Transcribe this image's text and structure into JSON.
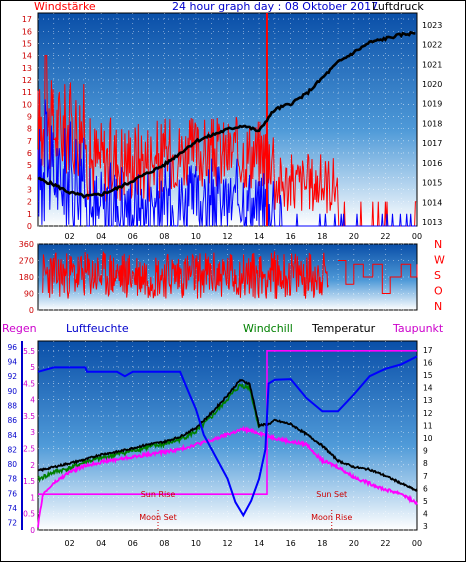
{
  "header": {
    "left": "Windstärke",
    "center": "24 hour graph day : 08 Oktober 2017",
    "right": "Luftdruck"
  },
  "hours": [
    "02",
    "04",
    "06",
    "08",
    "10",
    "12",
    "14",
    "16",
    "18",
    "20",
    "22",
    "00"
  ],
  "colors": {
    "wind_speed": "#ff0000",
    "wind_gust": "#0000ff",
    "pressure": "#000000",
    "direction": "#ff0000",
    "humidity": "#0000ff",
    "temperature": "#000000",
    "windchill": "#008000",
    "dewpoint": "#ff00ff",
    "rain": "#ff00ff",
    "sun_moon": "#cc0000"
  },
  "chart_data": [
    {
      "type": "line",
      "id": "wind_pressure",
      "left_axis_ticks": [
        "0",
        "1",
        "2",
        "3",
        "4",
        "5",
        "6",
        "7",
        "8",
        "9",
        "10",
        "11",
        "12",
        "13",
        "14",
        "15",
        "16",
        "17"
      ],
      "right_axis_ticks": [
        "1013",
        "1014",
        "1015",
        "1016",
        "1017",
        "1018",
        "1019",
        "1020",
        "1021",
        "1022",
        "1023"
      ],
      "ylim_left": [
        0,
        17.5
      ],
      "ylim_right": [
        1012.8,
        1023.6
      ],
      "xlim_hours": [
        0,
        24
      ],
      "pressure_hours": [
        0,
        1,
        2,
        3,
        4,
        5,
        6,
        7,
        8,
        9,
        10,
        11,
        12,
        13,
        14,
        14.5,
        15,
        16,
        17,
        18,
        19,
        20,
        21,
        22,
        23,
        24
      ],
      "pressure_values": [
        1015.2,
        1014.9,
        1014.5,
        1014.3,
        1014.4,
        1014.7,
        1015.1,
        1015.5,
        1015.9,
        1016.5,
        1017.1,
        1017.4,
        1017.7,
        1017.9,
        1017.6,
        1018.2,
        1018.7,
        1019.0,
        1019.5,
        1020.3,
        1021.1,
        1021.6,
        1022.1,
        1022.3,
        1022.5,
        1022.6
      ],
      "series": [
        {
          "name": "Windstärke",
          "color": "#ff0000"
        },
        {
          "name": "Luftdruck",
          "color": "#000000"
        }
      ]
    },
    {
      "type": "line",
      "id": "wind_direction",
      "left_axis_ticks": [
        "0",
        "90",
        "180",
        "270",
        "360"
      ],
      "right_axis_labels": [
        "N",
        "W",
        "S",
        "O",
        "N"
      ],
      "ylim": [
        0,
        360
      ],
      "xlim_hours": [
        0,
        24
      ]
    },
    {
      "type": "line",
      "id": "temp_humidity",
      "header_labels": {
        "rain": "Regen",
        "humidity": "Luftfeuchte",
        "windchill": "Windchill",
        "temperature": "Temperatur",
        "dewpoint": "Taupunkt"
      },
      "humidity_ticks": [
        "72",
        "74",
        "76",
        "78",
        "80",
        "82",
        "84",
        "86",
        "88",
        "90",
        "92",
        "94",
        "96"
      ],
      "rain_ticks": [
        "0",
        "0.5",
        "1",
        "1.5",
        "2",
        "2.5",
        "3",
        "3.5",
        "4",
        "4.5",
        "5",
        "5.5"
      ],
      "temp_ticks": [
        "3",
        "4",
        "5",
        "6",
        "7",
        "8",
        "9",
        "10",
        "11",
        "12",
        "13",
        "14",
        "15",
        "16",
        "17"
      ],
      "humidity_ylim": [
        71,
        96.8
      ],
      "temp_ylim": [
        2.7,
        17.7
      ],
      "xlim_hours": [
        0,
        24
      ],
      "temperature_hours": [
        0,
        1,
        2,
        3,
        4,
        5,
        6,
        7,
        8,
        9,
        10,
        11,
        12,
        12.8,
        13.4,
        14,
        14.6,
        15,
        16,
        17,
        18,
        19,
        20,
        21,
        22,
        23,
        24
      ],
      "temperature_values": [
        7.4,
        7.7,
        8.0,
        8.3,
        8.7,
        8.9,
        9.2,
        9.5,
        9.7,
        10.1,
        10.8,
        12.0,
        13.4,
        14.6,
        14.3,
        11.0,
        11.1,
        11.4,
        11.1,
        10.3,
        9.4,
        8.2,
        7.7,
        7.5,
        7.0,
        6.4,
        5.8
      ],
      "windchill_hours": [
        0,
        1,
        2,
        3,
        4,
        5,
        6,
        7,
        8,
        9,
        10,
        11,
        12,
        12.8,
        13.4,
        14
      ],
      "windchill_values": [
        6.7,
        7.3,
        7.6,
        8.1,
        8.4,
        8.7,
        9.0,
        9.3,
        9.5,
        9.9,
        10.5,
        11.7,
        13.1,
        14.2,
        14.0,
        10.8
      ],
      "dewpoint_hours": [
        0,
        0.3,
        1,
        2,
        3,
        4,
        5,
        6,
        7,
        8,
        9,
        10,
        11,
        12,
        13,
        14,
        15,
        16,
        17,
        18,
        19,
        20,
        21,
        22,
        23,
        24
      ],
      "dewpoint_values": [
        3.0,
        5.5,
        6.4,
        7.3,
        7.8,
        8.1,
        8.3,
        8.5,
        8.7,
        8.9,
        9.1,
        9.5,
        9.8,
        10.3,
        10.7,
        10.4,
        10.0,
        9.7,
        9.5,
        8.2,
        7.7,
        6.9,
        6.4,
        5.9,
        5.6,
        4.8
      ],
      "humidity_hours": [
        0,
        1,
        2,
        3,
        3.1,
        4,
        5,
        5.5,
        6,
        7,
        8,
        9,
        9.5,
        10,
        10.5,
        11,
        12,
        12.5,
        13,
        13.5,
        14,
        14.4,
        14.6,
        15,
        16,
        17,
        18,
        19,
        20,
        21,
        22,
        23,
        24
      ],
      "humidity_values": [
        92.6,
        93.2,
        93.2,
        93.2,
        92.6,
        92.6,
        92.6,
        92.0,
        92.6,
        92.6,
        92.6,
        92.6,
        90.0,
        87.5,
        84.0,
        82.0,
        78.0,
        74.8,
        73.0,
        75.0,
        78.0,
        82.0,
        91.0,
        91.5,
        91.6,
        89.0,
        87.2,
        87.2,
        89.5,
        92.0,
        93.0,
        93.6,
        94.7
      ],
      "rain_hours": [
        0,
        14.5,
        14.5,
        24
      ],
      "rain_values": [
        1.1,
        1.1,
        5.5,
        5.5
      ],
      "annotations": [
        {
          "text": "Sun Rise",
          "hour": 7.6
        },
        {
          "text": "Moon Set",
          "hour": 7.6
        },
        {
          "text": "Sun Set",
          "hour": 18.6
        },
        {
          "text": "Moon Rise",
          "hour": 18.6
        }
      ]
    }
  ]
}
